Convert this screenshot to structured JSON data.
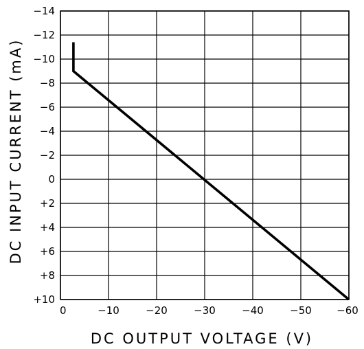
{
  "chart_data": {
    "type": "line",
    "title": "",
    "xlabel": "DC OUTPUT VOLTAGE (V)",
    "ylabel": "DC INPUT CURRENT (mA)",
    "x_ticks": [
      0,
      -10,
      -20,
      -30,
      -40,
      -50,
      -60
    ],
    "x_tick_labels": [
      "0",
      "−10",
      "−20",
      "−30",
      "−40",
      "−50",
      "−60"
    ],
    "y_ticks": [
      -14,
      -12,
      -10,
      -8,
      -6,
      -4,
      -2,
      0,
      2,
      4,
      6,
      8,
      10
    ],
    "y_tick_labels": [
      "−14",
      "−12",
      "−10",
      "−8",
      "−6",
      "−4",
      "−2",
      "0",
      "+2",
      "+4",
      "+6",
      "+8",
      "+10"
    ],
    "xlim": [
      0,
      -60
    ],
    "ylim": [
      10,
      -14
    ],
    "grid": true,
    "legend": "none",
    "series": [
      {
        "x": [
          -2.7,
          -2.7,
          -60
        ],
        "y": [
          -11.4,
          -9.0,
          10.0
        ]
      }
    ],
    "colors": {
      "line": "#000000",
      "grid": "#000000",
      "background": "#ffffff"
    }
  }
}
